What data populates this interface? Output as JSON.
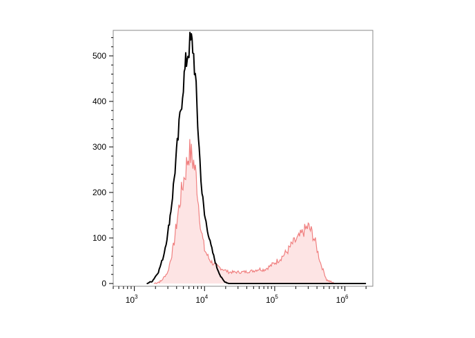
{
  "chart_data": {
    "type": "area",
    "title": "",
    "xlabel": "",
    "ylabel": "",
    "x_scale": "log",
    "xlim": [
      500,
      2500000
    ],
    "ylim": [
      0,
      570
    ],
    "x_ticks": [
      {
        "value": 1000,
        "base": "10",
        "exp": "3"
      },
      {
        "value": 10000,
        "base": "10",
        "exp": "4"
      },
      {
        "value": 100000,
        "base": "10",
        "exp": "5"
      },
      {
        "value": 1000000,
        "base": "10",
        "exp": "6"
      }
    ],
    "y_ticks": [
      {
        "value": 0,
        "label": "0"
      },
      {
        "value": 100,
        "label": "100"
      },
      {
        "value": 200,
        "label": "200"
      },
      {
        "value": 300,
        "label": "300"
      },
      {
        "value": 400,
        "label": "400"
      },
      {
        "value": 500,
        "label": "500"
      }
    ],
    "grid": false,
    "legend": "none",
    "series": [
      {
        "style": "filled",
        "color": "#f08080",
        "fill": "#fde4e4",
        "x": [
          1900,
          2400,
          3000,
          3600,
          4200,
          4800,
          5400,
          6000,
          6500,
          7000,
          7600,
          8200,
          9000,
          10000,
          11500,
          13000,
          15000,
          18000,
          22000,
          27000,
          33000,
          40000,
          50000,
          60000,
          70000,
          80000,
          100000,
          120000,
          150000,
          180000,
          220000,
          260000,
          300000,
          340000,
          380000,
          450000,
          550000,
          700000
        ],
        "y": [
          0,
          5,
          25,
          80,
          155,
          210,
          250,
          290,
          280,
          265,
          235,
          175,
          115,
          75,
          55,
          45,
          38,
          32,
          25,
          25,
          25,
          26,
          28,
          32,
          30,
          35,
          45,
          55,
          70,
          88,
          100,
          115,
          125,
          112,
          90,
          45,
          8,
          0
        ]
      },
      {
        "style": "line",
        "color": "#000000",
        "x": [
          1500,
          1800,
          2200,
          2600,
          3000,
          3400,
          3800,
          4200,
          4600,
          5000,
          5400,
          5800,
          6200,
          6500,
          6800,
          7200,
          7600,
          8000,
          8600,
          9200,
          10000,
          11000,
          12000,
          13500,
          15000,
          17000,
          19000,
          22000,
          26000,
          32000,
          50000,
          100000,
          300000,
          1000000,
          2000000
        ],
        "y": [
          0,
          5,
          25,
          60,
          110,
          175,
          250,
          320,
          385,
          440,
          480,
          510,
          525,
          530,
          520,
          480,
          420,
          350,
          270,
          200,
          150,
          120,
          90,
          60,
          35,
          15,
          5,
          0,
          0,
          0,
          0,
          0,
          0,
          0,
          0
        ]
      }
    ]
  }
}
